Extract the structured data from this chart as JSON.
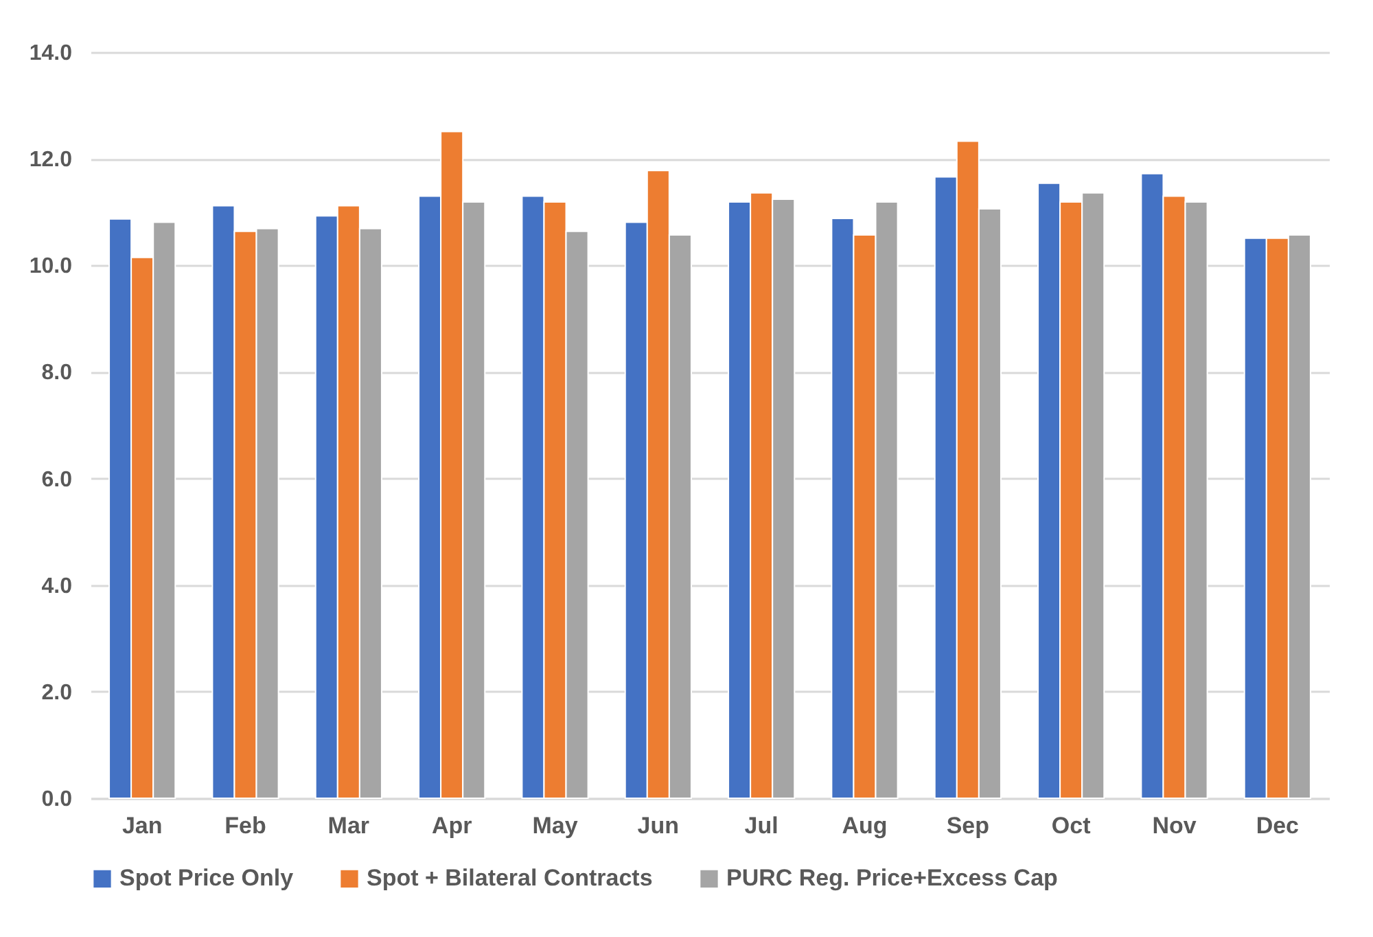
{
  "chart_data": {
    "type": "bar",
    "categories": [
      "Jan",
      "Feb",
      "Mar",
      "Apr",
      "May",
      "Jun",
      "Jul",
      "Aug",
      "Sep",
      "Oct",
      "Nov",
      "Dec"
    ],
    "series": [
      {
        "name": "Spot Price Only",
        "color": "#4472c4",
        "values": [
          10.87,
          11.12,
          10.93,
          11.3,
          11.3,
          10.81,
          11.19,
          10.88,
          11.66,
          11.54,
          11.72,
          10.51
        ]
      },
      {
        "name": "Spot + Bilateral Contracts",
        "color": "#ed7d31",
        "values": [
          10.15,
          10.64,
          11.12,
          12.51,
          11.19,
          11.78,
          11.36,
          10.57,
          12.33,
          11.19,
          11.3,
          10.51
        ]
      },
      {
        "name": "PURC Reg. Price+Excess Cap",
        "color": "#a5a5a5",
        "values": [
          10.81,
          10.69,
          10.69,
          11.19,
          10.64,
          10.57,
          11.24,
          11.19,
          11.06,
          11.36,
          11.19,
          10.57
        ]
      }
    ],
    "ylim": [
      0,
      14
    ],
    "yticks": [
      {
        "value": 0,
        "label": "0.0"
      },
      {
        "value": 2,
        "label": "2.0"
      },
      {
        "value": 4,
        "label": "4.0"
      },
      {
        "value": 6,
        "label": "6.0"
      },
      {
        "value": 8,
        "label": "8.0"
      },
      {
        "value": 10,
        "label": "10.0"
      },
      {
        "value": 12,
        "label": "12.0"
      },
      {
        "value": 14,
        "label": "14.0"
      }
    ],
    "grid": "y",
    "legend": "bottom"
  }
}
